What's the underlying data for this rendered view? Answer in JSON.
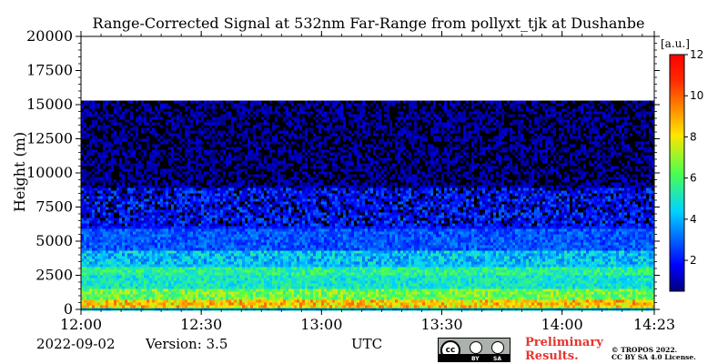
{
  "footer": {
    "date": "2022-09-02",
    "version": "Version: 3.5",
    "preliminary_line1": "Preliminary",
    "preliminary_line2": "Results.",
    "copyright_line1": "© TROPOS 2022.",
    "copyright_line2": "CC BY SA 4.0 License."
  },
  "license_badge": {
    "cc": "cc",
    "by": "BY",
    "sa": "SA"
  },
  "chart_data": {
    "type": "heatmap",
    "title": "Range-Corrected Signal at 532nm Far-Range from pollyxt_tjk at Dushanbe",
    "xlabel": "UTC",
    "ylabel": "Height (m)",
    "x_range": [
      "12:00",
      "14:23"
    ],
    "x_ticks": [
      "12:00",
      "12:30",
      "13:00",
      "13:30",
      "14:00",
      "14:23"
    ],
    "ylim": [
      0,
      20000
    ],
    "y_ticks": [
      0,
      2500,
      5000,
      7500,
      10000,
      12500,
      15000,
      17500,
      20000
    ],
    "data_top_height": 15300,
    "colorbar": {
      "unit": "[a.u.]",
      "range": [
        0.5,
        12
      ],
      "ticks": [
        2,
        4,
        6,
        8,
        10,
        12
      ],
      "colormap": "jet"
    },
    "layers": [
      {
        "from": 0,
        "to": 150,
        "signal": 4.5
      },
      {
        "from": 150,
        "to": 700,
        "signal": 8.5
      },
      {
        "from": 700,
        "to": 1500,
        "signal": 6.5
      },
      {
        "from": 1500,
        "to": 2500,
        "signal": 5.0
      },
      {
        "from": 2500,
        "to": 3200,
        "signal": 5.5
      },
      {
        "from": 3200,
        "to": 4300,
        "signal": 4.2
      },
      {
        "from": 4300,
        "to": 6000,
        "signal": 2.8
      },
      {
        "from": 6000,
        "to": 9000,
        "signal": 2.0
      },
      {
        "from": 9000,
        "to": 15300,
        "signal": 1.0
      }
    ],
    "grid": false
  }
}
